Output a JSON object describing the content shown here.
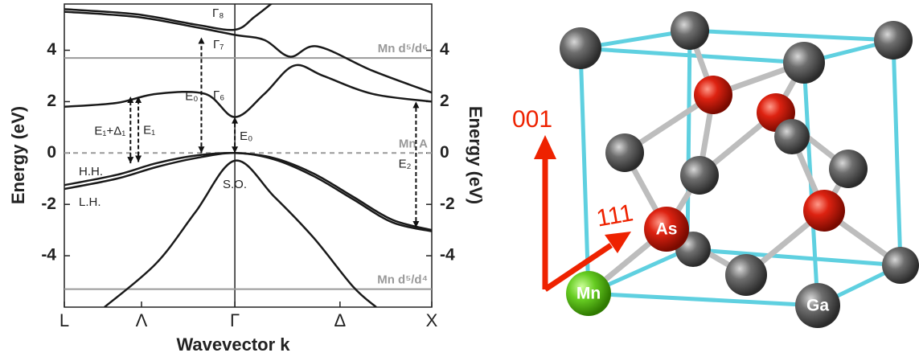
{
  "chart_data": {
    "type": "line",
    "xlabel": "Wavevector k",
    "ylabel": "Energy (eV)",
    "y2label": "Energy (eV)",
    "xlim": [
      -0.866,
      1
    ],
    "ylim": [
      -6,
      5.8
    ],
    "xticks": [
      {
        "value": -0.866,
        "label": "L"
      },
      {
        "value": -0.474,
        "label": "Λ"
      },
      {
        "value": 0,
        "label": "Γ"
      },
      {
        "value": 0.534,
        "label": "Δ"
      },
      {
        "value": 1,
        "label": "X"
      }
    ],
    "yticks": [
      -4,
      -2,
      0,
      2,
      4
    ],
    "y2ticks": [
      -4,
      -2,
      0,
      2,
      4
    ],
    "vline": 0,
    "series": [
      {
        "color": "#1a1a1a",
        "x": [
          -0.866,
          -0.6,
          -0.4,
          -0.2,
          0,
          0.2,
          0.4,
          0.6,
          0.8,
          1
        ],
        "values": [
          -1.25,
          -0.85,
          -0.4,
          -0.1,
          0,
          -0.2,
          -0.8,
          -1.7,
          -2.6,
          -3.0
        ]
      },
      {
        "color": "#1a1a1a",
        "x": [
          -0.866,
          -0.6,
          -0.4,
          -0.2,
          0,
          0.2,
          0.4,
          0.6,
          0.8,
          1
        ],
        "values": [
          -1.4,
          -1.0,
          -0.55,
          -0.2,
          0,
          -0.25,
          -0.9,
          -1.8,
          -2.7,
          -3.05
        ]
      },
      {
        "color": "#1a1a1a",
        "x": [
          -0.662,
          -0.4,
          -0.2,
          0,
          0.2,
          0.4,
          0.6,
          0.718
        ],
        "values": [
          -6,
          -4.3,
          -2.3,
          -0.3,
          -1.7,
          -3.3,
          -5.2,
          -6
        ]
      },
      {
        "color": "#1a1a1a",
        "x": [
          -0.866,
          -0.6,
          -0.4,
          -0.15,
          0,
          0.15,
          0.3,
          0.45,
          0.7,
          1
        ],
        "values": [
          1.8,
          1.95,
          2.3,
          2.3,
          1.4,
          2.3,
          3.4,
          3.0,
          2.3,
          2.0
        ]
      },
      {
        "color": "#1a1a1a",
        "x": [
          -0.866,
          -0.5,
          -0.2,
          0,
          0.15,
          0.28,
          0.42,
          0.7,
          1
        ],
        "values": [
          5.5,
          5.3,
          4.9,
          4.6,
          4.4,
          3.75,
          4.15,
          3.2,
          2.35
        ]
      },
      {
        "color": "#1a1a1a",
        "x": [
          -0.866,
          -0.5,
          -0.2,
          0,
          0.1,
          0.2
        ],
        "values": [
          5.6,
          5.4,
          5.0,
          4.8,
          5.3,
          5.9
        ]
      }
    ],
    "levels": [
      {
        "value": 3.7,
        "label": "Mn d⁵/d⁶",
        "color": "#999999",
        "dashed": false
      },
      {
        "value": 0,
        "label": "Mn A",
        "color": "#999999",
        "dashed": true
      },
      {
        "value": -5.3,
        "label": "Mn d⁵/d⁴",
        "color": "#999999",
        "dashed": false
      }
    ],
    "transitions": [
      {
        "label": "E₁+Δ₁",
        "x": -0.53,
        "from": -0.4,
        "to": 2.2
      },
      {
        "label": "E₁",
        "x": -0.49,
        "from": -0.35,
        "to": 2.2
      },
      {
        "label": "E₀",
        "x": -0.17,
        "from": 0,
        "to": 4.5
      },
      {
        "label": "E₀",
        "x": 0,
        "from": 0,
        "to": 1.4
      },
      {
        "label": "E₂",
        "x": 0.92,
        "from": -2.9,
        "to": 2.0
      }
    ],
    "band_labels": [
      "H.H.",
      "L.H.",
      "S.O.",
      "Γ₈",
      "Γ₇",
      "Γ₆"
    ]
  },
  "crystal": {
    "directions": [
      "001",
      "111"
    ],
    "atoms": [
      "Mn",
      "As",
      "Ga"
    ]
  }
}
